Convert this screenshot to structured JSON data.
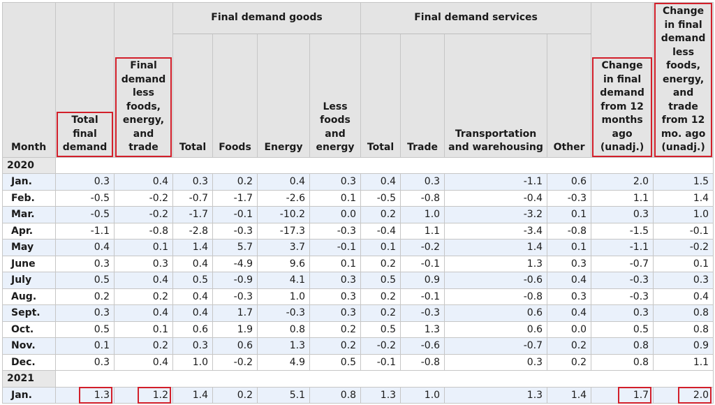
{
  "headers": {
    "month": "Month",
    "total_final_demand": "Total final demand",
    "fd_less_fet": "Final demand less foods, energy, and trade",
    "goods_group": "Final demand goods",
    "services_group": "Final demand services",
    "goods_total": "Total",
    "goods_foods": "Foods",
    "goods_energy": "Energy",
    "goods_less": "Less foods and energy",
    "serv_total": "Total",
    "serv_trade": "Trade",
    "serv_transport": "Transportation and warehousing",
    "serv_other": "Other",
    "change_12": "Change in final demand from 12 months ago (unadj.)",
    "change_less_12": "Change in final demand less foods, energy, and trade from 12 mo. ago (unadj.)"
  },
  "years": [
    "2020",
    "2021"
  ],
  "rows_2020": [
    {
      "month": "Jan.",
      "v": [
        "0.3",
        "0.4",
        "0.3",
        "0.2",
        "0.4",
        "0.3",
        "0.4",
        "0.3",
        "-1.1",
        "0.6",
        "2.0",
        "1.5"
      ]
    },
    {
      "month": "Feb.",
      "v": [
        "-0.5",
        "-0.2",
        "-0.7",
        "-1.7",
        "-2.6",
        "0.1",
        "-0.5",
        "-0.8",
        "-0.4",
        "-0.3",
        "1.1",
        "1.4"
      ]
    },
    {
      "month": "Mar.",
      "v": [
        "-0.5",
        "-0.2",
        "-1.7",
        "-0.1",
        "-10.2",
        "0.0",
        "0.2",
        "1.0",
        "-3.2",
        "0.1",
        "0.3",
        "1.0"
      ]
    },
    {
      "month": "Apr.",
      "v": [
        "-1.1",
        "-0.8",
        "-2.8",
        "-0.3",
        "-17.3",
        "-0.3",
        "-0.4",
        "1.1",
        "-3.4",
        "-0.8",
        "-1.5",
        "-0.1"
      ]
    },
    {
      "month": "May",
      "v": [
        "0.4",
        "0.1",
        "1.4",
        "5.7",
        "3.7",
        "-0.1",
        "0.1",
        "-0.2",
        "1.4",
        "0.1",
        "-1.1",
        "-0.2"
      ]
    },
    {
      "month": "June",
      "v": [
        "0.3",
        "0.3",
        "0.4",
        "-4.9",
        "9.6",
        "0.1",
        "0.2",
        "-0.1",
        "1.3",
        "0.3",
        "-0.7",
        "0.1"
      ]
    },
    {
      "month": "July",
      "v": [
        "0.5",
        "0.4",
        "0.5",
        "-0.9",
        "4.1",
        "0.3",
        "0.5",
        "0.9",
        "-0.6",
        "0.4",
        "-0.3",
        "0.3"
      ]
    },
    {
      "month": "Aug.",
      "v": [
        "0.2",
        "0.2",
        "0.4",
        "-0.3",
        "1.0",
        "0.3",
        "0.2",
        "-0.1",
        "-0.8",
        "0.3",
        "-0.3",
        "0.4"
      ]
    },
    {
      "month": "Sept.",
      "v": [
        "0.3",
        "0.4",
        "0.4",
        "1.7",
        "-0.3",
        "0.3",
        "0.2",
        "-0.3",
        "0.6",
        "0.4",
        "0.3",
        "0.8"
      ]
    },
    {
      "month": "Oct.",
      "v": [
        "0.5",
        "0.1",
        "0.6",
        "1.9",
        "0.8",
        "0.2",
        "0.5",
        "1.3",
        "0.6",
        "0.0",
        "0.5",
        "0.8"
      ]
    },
    {
      "month": "Nov.",
      "v": [
        "0.1",
        "0.2",
        "0.3",
        "0.6",
        "1.3",
        "0.2",
        "-0.2",
        "-0.6",
        "-0.7",
        "0.2",
        "0.8",
        "0.9"
      ]
    },
    {
      "month": "Dec.",
      "v": [
        "0.3",
        "0.4",
        "1.0",
        "-0.2",
        "4.9",
        "0.5",
        "-0.1",
        "-0.8",
        "0.3",
        "0.2",
        "0.8",
        "1.1"
      ]
    }
  ],
  "rows_2021": [
    {
      "month": "Jan.",
      "v": [
        "1.3",
        "1.2",
        "1.4",
        "0.2",
        "5.1",
        "0.8",
        "1.3",
        "1.0",
        "1.3",
        "1.4",
        "1.7",
        "2.0"
      ]
    }
  ],
  "highlight_color": "#d21f2a"
}
